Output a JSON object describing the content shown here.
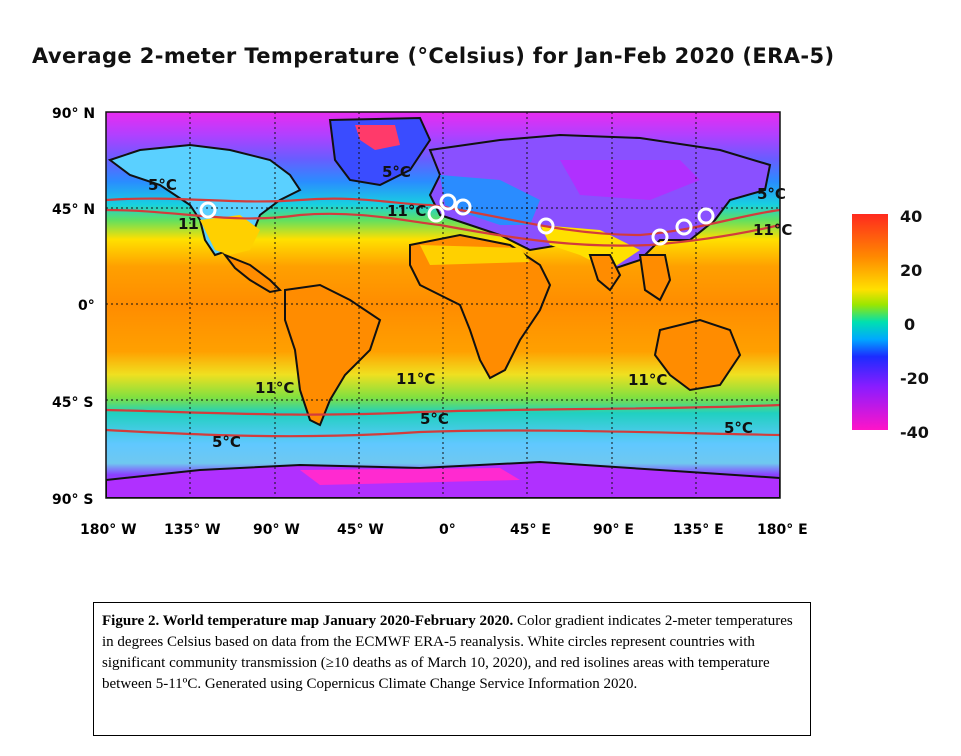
{
  "title": "Average 2-meter Temperature (°Celsius) for Jan-Feb 2020 (ERA-5)",
  "map": {
    "lat_ticks": [
      "90° N",
      "45° N",
      "0°",
      "45° S",
      "90° S"
    ],
    "lon_ticks": [
      "180° W",
      "135° W",
      "90° W",
      "45° W",
      "0°",
      "45° E",
      "90° E",
      "135° E",
      "180° E"
    ],
    "isoline_labels": {
      "n_america_5": "5°C",
      "n_america_11": "11",
      "greenland_5": "5°C",
      "europe_11": "11°C",
      "asia_5": "5°C",
      "asia_11": "11°C",
      "s_america_11": "11°C",
      "atlantic_11": "11°C",
      "australia_11": "11°C",
      "s_america_5": "5°C",
      "atlantic_5": "5°C",
      "pacific_5": "5°C"
    },
    "isoline_color": "#d23c3c",
    "marker_color": "#ffffff"
  },
  "colorbar": {
    "labels": [
      "40",
      "20",
      "0",
      "-20",
      "-40"
    ],
    "colors": [
      "#ff2a1e",
      "#ff8a00",
      "#ffe000",
      "#9be600",
      "#00e0b0",
      "#00a8ff",
      "#1c2cff",
      "#8a1cff",
      "#ff14c8"
    ]
  },
  "caption": {
    "bold": "Figure 2. World temperature map January 2020-February 2020.",
    "text": "Color gradient indicates 2-meter temperatures in degrees Celsius based on data from the ECMWF ERA-5 reanalysis. White circles represent countries with significant community transmission (≥10 deaths as of March 10, 2020), and red isolines areas with temperature between 5-11ºC. Generated using Copernicus Climate Change Service Information 2020."
  }
}
